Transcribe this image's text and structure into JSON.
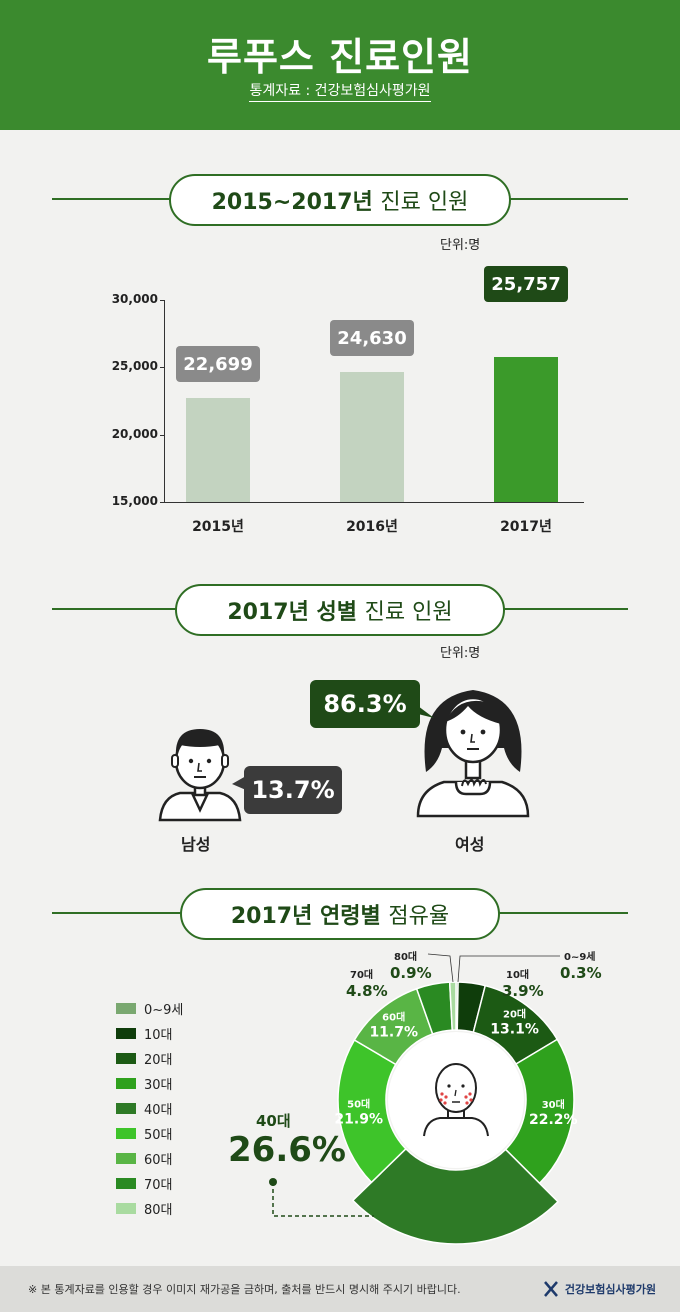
{
  "header": {
    "title": "루푸스 진료인원",
    "source": "통계자료 : 건강보험심사평가원"
  },
  "section1": {
    "title_bold": "2015~2017년",
    "title_light": "진료 인원",
    "unit": "단위:명"
  },
  "chart_data": [
    {
      "type": "bar",
      "categories": [
        "2015년",
        "2016년",
        "2017년"
      ],
      "values": [
        22699,
        24630,
        25757
      ],
      "value_labels": [
        "22,699",
        "24,630",
        "25,757"
      ],
      "yticks": [
        "30,000",
        "25,000",
        "20,000",
        "15,000"
      ],
      "ylim": [
        15000,
        30000
      ],
      "colors": [
        "#c3d3c0",
        "#c3d3c0",
        "#3b9a2a"
      ],
      "callout_colors": [
        "#8a8a8a",
        "#8a8a8a",
        "#1f4a17"
      ]
    },
    {
      "type": "pie",
      "categories": [
        "0~9세",
        "10대",
        "20대",
        "30대",
        "40대",
        "50대",
        "60대",
        "70대",
        "80대"
      ],
      "values": [
        0.3,
        3.9,
        13.1,
        22.2,
        26.6,
        21.9,
        11.7,
        4.8,
        0.9
      ],
      "segment_labels": [
        {
          "name": "0~9세",
          "value": "0.3%"
        },
        {
          "name": "10대",
          "value": "3.9%"
        },
        {
          "name": "20대",
          "value": "13.1%"
        },
        {
          "name": "30대",
          "value": "22.2%"
        },
        {
          "name": "40대",
          "value": "26.6%"
        },
        {
          "name": "50대",
          "value": "21.9%"
        },
        {
          "name": "60대",
          "value": "11.7%"
        },
        {
          "name": "70대",
          "value": "4.8%"
        },
        {
          "name": "80대",
          "value": "0.9%"
        }
      ],
      "colors": [
        "#7aa870",
        "#0f3d0b",
        "#1c5a14",
        "#2fa11d",
        "#2e7a26",
        "#3ec42a",
        "#59b545",
        "#2a8a22",
        "#a9dba0"
      ]
    }
  ],
  "section2": {
    "title_bold": "2017년 성별",
    "title_light": "진료 인원",
    "unit": "단위:명",
    "male_label": "남성",
    "male_value": "13.7%",
    "female_label": "여성",
    "female_value": "86.3%"
  },
  "section3": {
    "title_bold": "2017년 연령별",
    "title_light": "점유율",
    "highlight_name": "40대",
    "highlight_value": "26.6%"
  },
  "footer": {
    "note": "※ 본 통계자료를 인용할 경우 이미지 재가공을 금하며, 출처를 반드시 명시해 주시기 바랍니다.",
    "logo_text": "건강보험심사평가원"
  }
}
